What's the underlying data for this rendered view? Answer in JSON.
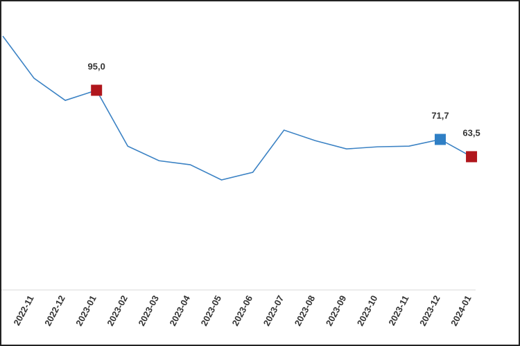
{
  "chart_data": {
    "type": "line",
    "categories": [
      null,
      "2022-11",
      "2022-12",
      "2023-01",
      "2023-02",
      "2023-03",
      "2023-04",
      "2023-05",
      "2023-06",
      "2023-07",
      "2023-08",
      "2023-09",
      "2023-10",
      "2023-11",
      "2023-12",
      "2024-01"
    ],
    "series": [
      {
        "color": "#3b82c4",
        "values": [
          120.7,
          100.7,
          90.2,
          95.0,
          68.5,
          61.6,
          59.7,
          52.5,
          56.1,
          76.1,
          71.1,
          67.2,
          68.2,
          68.5,
          71.7,
          63.5
        ],
        "value_labels": [
          null,
          null,
          null,
          "95,0",
          null,
          null,
          null,
          null,
          null,
          null,
          null,
          null,
          null,
          null,
          "71,7",
          "63,5"
        ],
        "marker_colors": [
          null,
          null,
          null,
          "#b0161c",
          null,
          null,
          null,
          null,
          null,
          null,
          null,
          null,
          null,
          null,
          "#2f7fc5",
          "#b0161c"
        ]
      }
    ],
    "ylim": [
      0,
      125
    ]
  }
}
